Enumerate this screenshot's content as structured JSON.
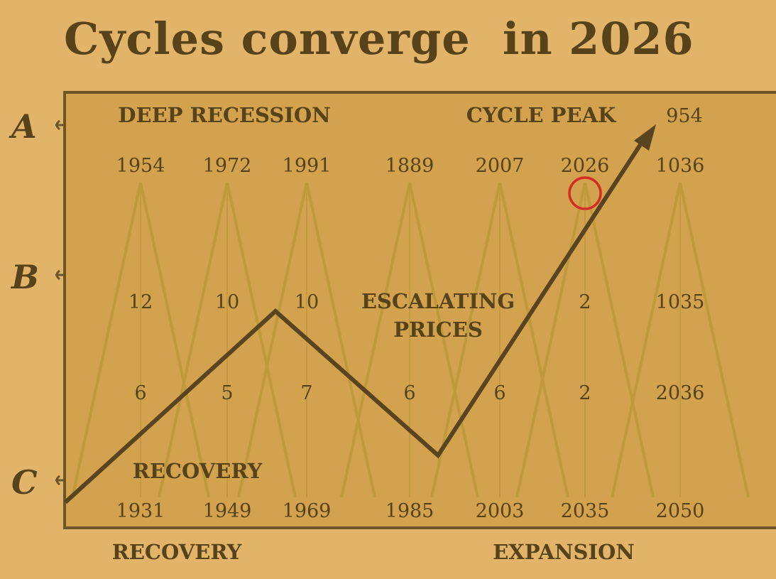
{
  "title": "Cycles converge  in 2026",
  "axis_levels": [
    "A",
    "B",
    "C"
  ],
  "labels": {
    "deep_recession": "DEEP RECESSION",
    "cycle_peak": "CYCLE PEAK",
    "peak_value": "954",
    "escalating_line1": "ESCALATING",
    "escalating_line2": "PRICES",
    "recovery_inner": "RECOVERY",
    "recovery_bottom": "RECOVERY",
    "expansion_bottom": "EXPANSION"
  },
  "cycles": [
    {
      "top_year": "1954",
      "upper_value": "12",
      "lower_value": "6",
      "bottom_year": "1931"
    },
    {
      "top_year": "1972",
      "upper_value": "10",
      "lower_value": "5",
      "bottom_year": "1949"
    },
    {
      "top_year": "1991",
      "upper_value": "10",
      "lower_value": "7",
      "bottom_year": "1969"
    },
    {
      "top_year": "1889",
      "upper_value": "",
      "lower_value": "6",
      "bottom_year": "1985"
    },
    {
      "top_year": "2007",
      "upper_value": "",
      "lower_value": "6",
      "bottom_year": "2003"
    },
    {
      "top_year": "2026",
      "upper_value": "2",
      "lower_value": "2",
      "bottom_year": "2035",
      "highlighted": true
    },
    {
      "top_year": "1036",
      "upper_value": "1035",
      "lower_value": "2036",
      "bottom_year": "2050"
    }
  ],
  "colors": {
    "background": "#e1b469",
    "panel": "#d2a24f",
    "frame": "#6e5426",
    "cycle_lines": "#bf9a3b",
    "trend_line": "#5a4420",
    "text": "#57421a",
    "highlight": "#d62b22"
  }
}
